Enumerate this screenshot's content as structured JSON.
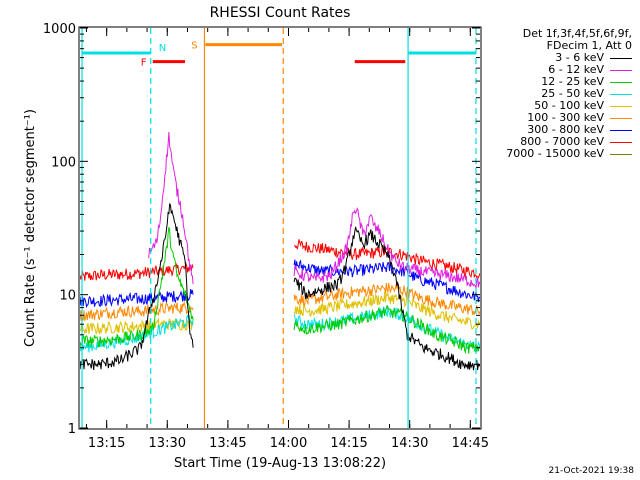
{
  "chart_data": {
    "type": "line",
    "title": "RHESSI Count Rates",
    "xlabel": "Start Time (19-Aug-13 13:08:22)",
    "ylabel": "Count Rate (s⁻¹ detector segment⁻¹)",
    "x_unit": "minutes from 13:08:22",
    "xlim": [
      0,
      99
    ],
    "ylim": [
      1,
      1000
    ],
    "yscale": "log",
    "x_ticks": [
      {
        "label": "13:15",
        "minute": 6.6
      },
      {
        "label": "13:30",
        "minute": 21.6
      },
      {
        "label": "13:45",
        "minute": 36.6
      },
      {
        "label": "14:00",
        "minute": 51.6
      },
      {
        "label": "14:15",
        "minute": 66.6
      },
      {
        "label": "14:30",
        "minute": 81.6
      },
      {
        "label": "14:45",
        "minute": 96.6
      }
    ],
    "y_ticks": [
      {
        "label": "1",
        "value": 1
      },
      {
        "label": "10",
        "value": 10
      },
      {
        "label": "100",
        "value": 100
      },
      {
        "label": "1000",
        "value": 1000
      }
    ],
    "legend_header": [
      "Det 1f,3f,4f,5f,6f,9f,",
      "FDecim 1, Att 0"
    ],
    "series": [
      {
        "name": "3 - 6 keV",
        "color": "#000000",
        "x": [
          0,
          5,
          10,
          15,
          17,
          19,
          21,
          22,
          23,
          24,
          26,
          27,
          28,
          53,
          56,
          60,
          64,
          66,
          68,
          70,
          72,
          74,
          76,
          78,
          81,
          85,
          90,
          95,
          99
        ],
        "y": [
          3.0,
          3.0,
          3.2,
          4.0,
          7.0,
          12.0,
          25.0,
          45.0,
          40.0,
          30.0,
          18.0,
          6.0,
          4.0,
          13.0,
          10.0,
          11.0,
          12.0,
          17.0,
          30.0,
          24.0,
          28.0,
          24.0,
          20.0,
          14.0,
          5.0,
          4.0,
          3.5,
          3.0,
          3.0
        ]
      },
      {
        "name": "6 - 12 keV",
        "color": "#e020e0",
        "x": [
          17,
          19,
          20,
          21,
          22,
          23,
          24,
          25,
          26,
          27,
          28,
          53,
          58,
          62,
          66,
          68,
          69,
          70,
          72,
          73,
          74,
          76,
          78,
          80,
          84,
          90,
          95,
          99
        ],
        "y": [
          20.0,
          25.0,
          40.0,
          80.0,
          155.0,
          90.0,
          60.0,
          45.0,
          30.0,
          18.0,
          12.0,
          15.0,
          13.0,
          14.0,
          22.0,
          46.0,
          38.0,
          28.0,
          38.0,
          32.0,
          30.0,
          22.0,
          18.0,
          16.0,
          15.0,
          14.0,
          13.0,
          12.0
        ]
      },
      {
        "name": "12 - 25 keV",
        "color": "#00cc00",
        "x": [
          0,
          5,
          10,
          15,
          18,
          20,
          21,
          22,
          23,
          24,
          26,
          28,
          53,
          56,
          60,
          64,
          68,
          72,
          76,
          80,
          84,
          88,
          92,
          96,
          99
        ],
        "y": [
          4.5,
          4.5,
          4.7,
          5.0,
          5.5,
          12.0,
          18.0,
          30.0,
          20.0,
          14.0,
          10.0,
          6.5,
          6.0,
          5.5,
          5.8,
          6.0,
          6.5,
          7.0,
          7.5,
          7.0,
          6.0,
          5.0,
          4.5,
          4.0,
          4.0
        ]
      },
      {
        "name": "25 - 50 keV",
        "color": "#00e0e0",
        "x": [
          0,
          5,
          10,
          15,
          20,
          24,
          28,
          53,
          56,
          60,
          64,
          68,
          72,
          76,
          80,
          84,
          88,
          92,
          96,
          99
        ],
        "y": [
          4.0,
          4.2,
          4.5,
          4.8,
          5.5,
          6.0,
          6.5,
          6.5,
          6.0,
          6.0,
          6.3,
          6.6,
          7.0,
          7.5,
          7.0,
          6.0,
          5.2,
          4.6,
          4.2,
          4.0
        ]
      },
      {
        "name": "50 - 100 keV",
        "color": "#e0c000",
        "x": [
          0,
          5,
          10,
          15,
          20,
          24,
          28,
          53,
          56,
          60,
          64,
          68,
          72,
          76,
          80,
          84,
          88,
          92,
          96,
          99
        ],
        "y": [
          5.5,
          5.6,
          5.7,
          5.8,
          6.0,
          6.0,
          6.0,
          8.0,
          7.5,
          7.8,
          8.2,
          8.6,
          9.0,
          9.5,
          9.2,
          8.0,
          7.2,
          6.6,
          6.2,
          6.0
        ]
      },
      {
        "name": "100 - 300 keV",
        "color": "#ff8800",
        "x": [
          0,
          5,
          10,
          15,
          20,
          24,
          28,
          53,
          56,
          60,
          64,
          68,
          72,
          76,
          80,
          84,
          88,
          92,
          96,
          99
        ],
        "y": [
          7.0,
          7.2,
          7.5,
          7.5,
          7.8,
          8.0,
          8.0,
          9.5,
          9.0,
          9.5,
          10.0,
          10.5,
          10.8,
          11.2,
          10.8,
          9.5,
          8.8,
          8.2,
          7.8,
          7.5
        ]
      },
      {
        "name": "300 - 800 keV",
        "color": "#0000ff",
        "x": [
          0,
          5,
          10,
          15,
          20,
          24,
          28,
          53,
          56,
          60,
          64,
          68,
          72,
          76,
          80,
          84,
          88,
          92,
          96,
          99
        ],
        "y": [
          9.0,
          9.0,
          9.2,
          9.3,
          9.5,
          9.8,
          10.0,
          17.0,
          16.0,
          15.0,
          15.0,
          15.0,
          15.5,
          16.0,
          15.0,
          13.0,
          12.0,
          11.0,
          10.0,
          9.5
        ]
      },
      {
        "name": "800 - 7000 keV",
        "color": "#ff0000",
        "x": [
          0,
          5,
          10,
          15,
          20,
          24,
          28,
          53,
          56,
          60,
          64,
          68,
          72,
          76,
          80,
          84,
          88,
          92,
          96,
          99
        ],
        "y": [
          13.5,
          14.0,
          14.2,
          14.5,
          15.0,
          15.5,
          16.0,
          24.0,
          23.0,
          22.0,
          21.0,
          20.0,
          20.5,
          21.0,
          20.0,
          18.0,
          17.0,
          16.0,
          15.0,
          14.5
        ]
      },
      {
        "name": "7000 - 15000 keV",
        "color": "#808000",
        "x": [],
        "y": []
      }
    ],
    "vertical_markers": [
      {
        "minute": 0.5,
        "color": "#00e0e0",
        "style": "solid"
      },
      {
        "minute": 17.5,
        "color": "#00e0e0",
        "style": "dashed"
      },
      {
        "minute": 30.8,
        "color": "#ff8800",
        "style": "solid"
      },
      {
        "minute": 50.3,
        "color": "#ff8800",
        "style": "dashed"
      },
      {
        "minute": 81.2,
        "color": "#00e0e0",
        "style": "solid"
      },
      {
        "minute": 98.0,
        "color": "#00e0e0",
        "style": "dashed"
      }
    ],
    "flag_bars": [
      {
        "x0": 0.5,
        "x1": 17.5,
        "y": 650,
        "color": "#00e0e0",
        "label": ""
      },
      {
        "x0": 18,
        "x1": 26,
        "y": 560,
        "color": "#ff0000",
        "label": "F"
      },
      {
        "x0": 18.5,
        "x1": 18.5,
        "y": 650,
        "color": "#00e0e0",
        "label": "N"
      },
      {
        "x0": 31,
        "x1": 50,
        "y": 750,
        "color": "#ff8800",
        "label": "S"
      },
      {
        "x0": 68,
        "x1": 80.5,
        "y": 560,
        "color": "#ff0000",
        "label": ""
      },
      {
        "x0": 81.2,
        "x1": 98,
        "y": 650,
        "color": "#00e0e0",
        "label": ""
      }
    ]
  },
  "timestamp": "21-Oct-2021 19:38"
}
